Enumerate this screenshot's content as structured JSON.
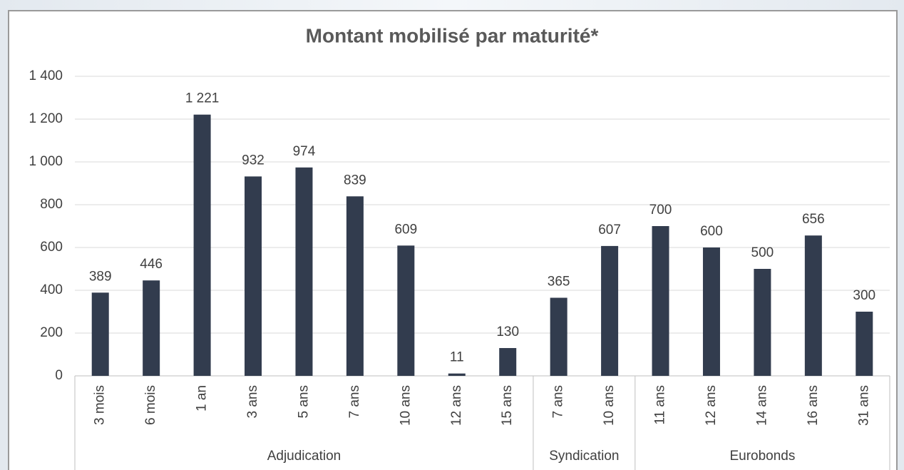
{
  "chart_data": {
    "type": "bar",
    "title": "Montant mobilisé par maturité*",
    "color": "#323c4e",
    "grid": true,
    "ylim": [
      0,
      1400
    ],
    "yticks": [
      0,
      200,
      400,
      600,
      800,
      {
        "value": 1000,
        "label": "1 000"
      },
      {
        "value": 1200,
        "label": "1 200"
      },
      {
        "value": 1400,
        "label": "1 400"
      }
    ],
    "groups": [
      {
        "name": "Adjudication",
        "categories": [
          "3 mois",
          "6 mois",
          "1 an",
          "3 ans",
          "5 ans",
          "7 ans",
          "10 ans",
          "12 ans",
          "15 ans"
        ],
        "values": [
          389,
          446,
          1221,
          932,
          974,
          839,
          609,
          11,
          130
        ],
        "value_labels": [
          "389",
          "446",
          "1 221",
          "932",
          "974",
          "839",
          "609",
          "11",
          "130"
        ]
      },
      {
        "name": "Syndication",
        "categories": [
          "7 ans",
          "10 ans"
        ],
        "values": [
          365,
          607
        ]
      },
      {
        "name": "Eurobonds",
        "categories": [
          "11 ans",
          "12 ans",
          "14 ans",
          "16 ans",
          "31 ans"
        ],
        "values": [
          700,
          600,
          500,
          656,
          300
        ]
      }
    ]
  }
}
